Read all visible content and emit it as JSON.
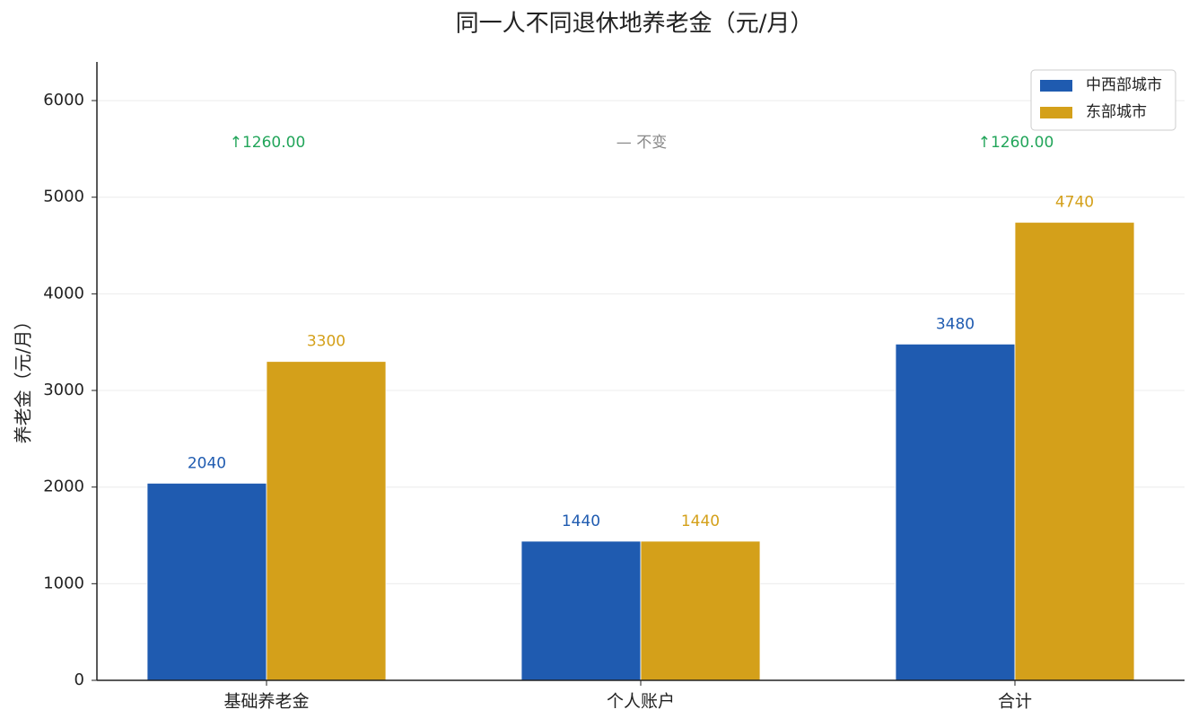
{
  "chart_data": {
    "type": "bar",
    "title": "同一人不同退休地养老金（元/月）",
    "y_label": "养老金（元/月）",
    "categories": [
      "基础养老金",
      "个人账户",
      "合计"
    ],
    "series": [
      {
        "name": "中西部城市",
        "color": "#1f5bb0",
        "values": [
          2040,
          1440,
          3480
        ]
      },
      {
        "name": "东部城市",
        "color": "#d4a01a",
        "values": [
          3300,
          1440,
          4740
        ]
      }
    ],
    "annotations": [
      {
        "text": "↑1260.00",
        "color": "#22a55a"
      },
      {
        "text": "— 不变",
        "color": "#888888"
      },
      {
        "text": "↑1260.00",
        "color": "#22a55a"
      }
    ],
    "ylim": [
      0,
      6400
    ],
    "yticks": [
      0,
      1000,
      2000,
      3000,
      4000,
      5000,
      6000
    ],
    "grid": true,
    "legend": "upper right"
  }
}
